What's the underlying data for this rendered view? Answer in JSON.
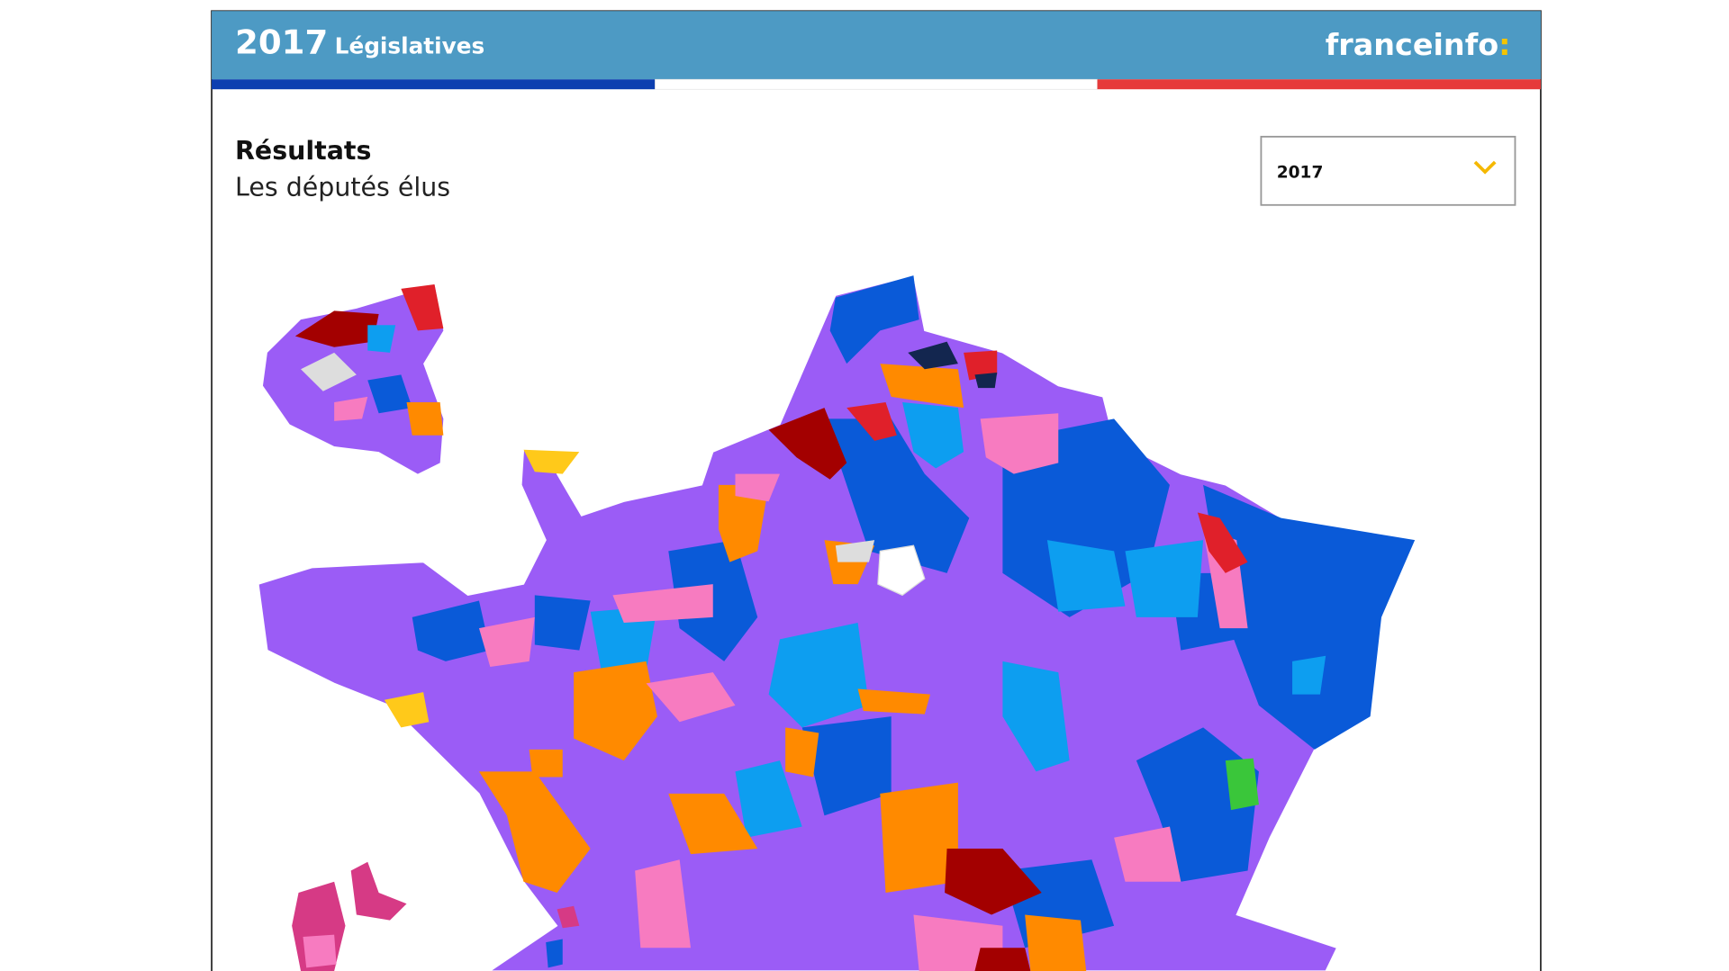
{
  "header": {
    "year": "2017",
    "title": "Législatives",
    "brand": "franceinfo",
    "brand_mark": ":"
  },
  "panel": {
    "heading": "Résultats",
    "subheading": "Les députés élus"
  },
  "selector": {
    "value": "2017"
  }
}
